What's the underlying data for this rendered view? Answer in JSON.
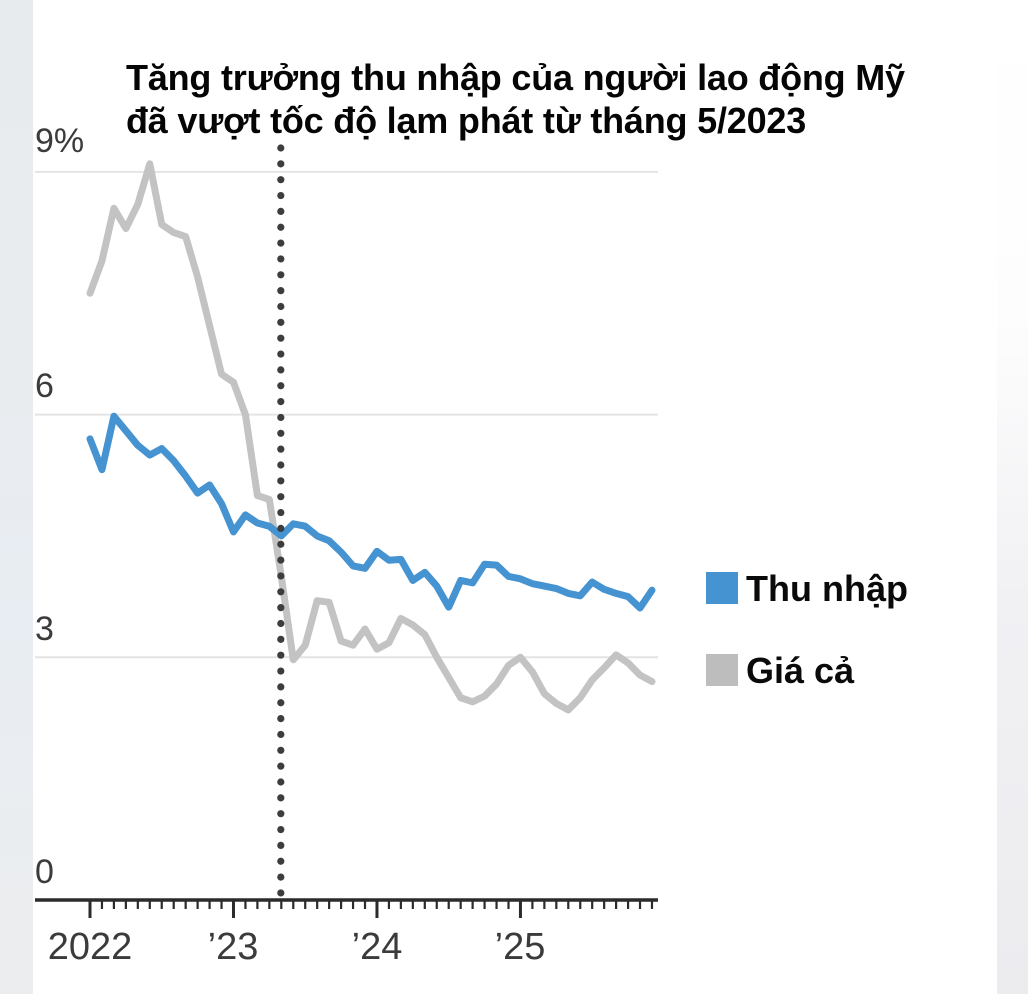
{
  "title": {
    "line1": "Tăng trưởng thu nhập của người lao động Mỹ",
    "line2": "đã vượt tốc độ lạm phát từ tháng 5/2023"
  },
  "y_axis": {
    "ticks": [
      {
        "label": "9%",
        "value": 9
      },
      {
        "label": "6",
        "value": 6
      },
      {
        "label": "3",
        "value": 3
      },
      {
        "label": "0",
        "value": 0
      }
    ]
  },
  "x_axis": {
    "minor_tick_unit": "month",
    "ticks": [
      {
        "label": "2022",
        "month_index": 0
      },
      {
        "label": "’23",
        "month_index": 12
      },
      {
        "label": "’24",
        "month_index": 24
      },
      {
        "label": "’25",
        "month_index": 36
      }
    ]
  },
  "legend": {
    "items": [
      {
        "label": "Thu nhập",
        "color": "#4593d1"
      },
      {
        "label": "Giá cả",
        "color": "#bdbdbd"
      }
    ]
  },
  "annotation": {
    "type": "dotted-vertical-line",
    "at": "2023-05",
    "color": "#3d3d3d"
  },
  "chart_data": {
    "type": "line",
    "title": "Tăng trưởng thu nhập của người lao động Mỹ đã vượt tốc độ lạm phát từ tháng 5/2023",
    "ylabel": "%",
    "ylim": [
      0,
      9.3
    ],
    "yticks": [
      0,
      3,
      6,
      9
    ],
    "grid": "horizontal",
    "legend_position": "right",
    "vline": {
      "x": "2023-05",
      "style": "dotted"
    },
    "x": [
      "2022-01",
      "2022-02",
      "2022-03",
      "2022-04",
      "2022-05",
      "2022-06",
      "2022-07",
      "2022-08",
      "2022-09",
      "2022-10",
      "2022-11",
      "2022-12",
      "2023-01",
      "2023-02",
      "2023-03",
      "2023-04",
      "2023-05",
      "2023-06",
      "2023-07",
      "2023-08",
      "2023-09",
      "2023-10",
      "2023-11",
      "2023-12",
      "2024-01",
      "2024-02",
      "2024-03",
      "2024-04",
      "2024-05",
      "2024-06",
      "2024-07",
      "2024-08",
      "2024-09",
      "2024-10",
      "2024-11",
      "2024-12",
      "2025-01",
      "2025-02",
      "2025-03",
      "2025-04",
      "2025-05",
      "2025-06",
      "2025-07",
      "2025-08",
      "2025-09",
      "2025-10",
      "2025-11",
      "2025-12"
    ],
    "series": [
      {
        "name": "Thu nhập",
        "color": "#4593d1",
        "values": [
          5.7,
          5.32,
          5.98,
          5.8,
          5.62,
          5.5,
          5.58,
          5.43,
          5.24,
          5.03,
          5.13,
          4.9,
          4.55,
          4.76,
          4.66,
          4.62,
          4.5,
          4.65,
          4.62,
          4.5,
          4.44,
          4.3,
          4.13,
          4.1,
          4.31,
          4.2,
          4.21,
          3.95,
          4.05,
          3.88,
          3.62,
          3.95,
          3.92,
          4.15,
          4.14,
          4.0,
          3.97,
          3.91,
          3.88,
          3.85,
          3.79,
          3.76,
          3.93,
          3.84,
          3.79,
          3.75,
          3.61,
          3.83
        ]
      },
      {
        "name": "Giá cả",
        "color": "#c3c3c3",
        "values": [
          7.5,
          7.9,
          8.55,
          8.3,
          8.6,
          9.1,
          8.35,
          8.25,
          8.2,
          7.7,
          7.1,
          6.5,
          6.4,
          6.0,
          5.0,
          4.95,
          4.0,
          2.97,
          3.15,
          3.7,
          3.68,
          3.2,
          3.15,
          3.35,
          3.1,
          3.18,
          3.48,
          3.4,
          3.28,
          3.0,
          2.75,
          2.5,
          2.45,
          2.52,
          2.67,
          2.9,
          3.0,
          2.82,
          2.55,
          2.43,
          2.35,
          2.5,
          2.72,
          2.87,
          3.03,
          2.93,
          2.78,
          2.7
        ]
      }
    ]
  }
}
